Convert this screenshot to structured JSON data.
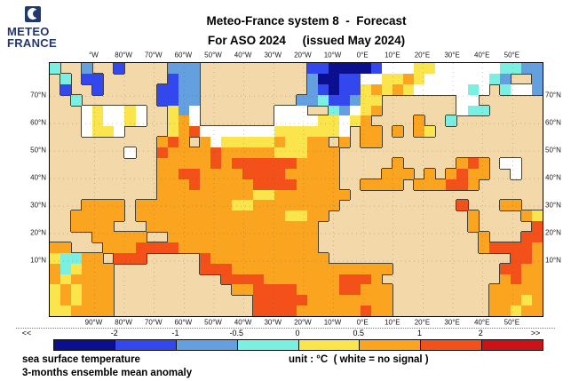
{
  "logo": {
    "line1": "METEO",
    "line2": "FRANCE",
    "navy": "#21386E"
  },
  "title": {
    "line1": "Meteo-France system 8  -  Forecast",
    "line2": "For ASO 2024     (issued May 2024)"
  },
  "map": {
    "top_axis": [
      "°W",
      "80°W",
      "70°W",
      "60°W",
      "50°W",
      "40°W",
      "30°W",
      "20°W",
      "10°W",
      "0°E",
      "10°E",
      "20°E",
      "30°E",
      "40°E",
      "50°E"
    ],
    "bottom_axis": [
      "90°W",
      "80°W",
      "70°W",
      "60°W",
      "50°W",
      "40°W",
      "30°W",
      "20°W",
      "10°W",
      "0°E",
      "10°E",
      "20°E",
      "30°E",
      "40°E",
      "50°E"
    ],
    "left_axis": [
      "70°N",
      "60°N",
      "50°N",
      "40°N",
      "30°N",
      "20°N",
      "10°N"
    ],
    "right_axis": [
      "70°N",
      "60°N",
      "50°N",
      "40°N",
      "30°N",
      "20°N",
      "10°N"
    ],
    "grid": {
      "cols": 46,
      "rows": 24,
      "palette": {
        "L": "#F3D9A9",
        "O": "#FBA41F",
        "Y": "#FBE54D",
        "W": "#FFFFFF",
        "C": "#79F0E2",
        "S": "#64A0DF",
        "B": "#3347EE",
        "N": "#0A0F8F",
        "R": "#F4501A",
        "E": "#CB1217"
      },
      "land_key": "L",
      "coast_color": "#45402e",
      "cells": [
        "CLLSLLBLLLLSSSLLLLLLLLLLBBNNNNBWWWYYWWWWWWCCSS",
        "LCLBBLLLLLLBSSLLLLLLLLLLSNNBBWWYYOYWWWWWWCSLLS",
        "LBLLBLLLLLBBSSLLLLLLLLLLSBNBBYOYOYWWWWWCWLCWWS",
        "LLCLLLLLLLBBSSLLLLLLLLLSSCBBSYYLLLLLLLWWLLLLLL",
        "LLLWYWWYWLLYSWLLLLLLLWWWLLCSWYOLLLLLLLWCCLLLLL",
        "LLLWYWWYWLLYOWLLLLLLLWWWWYYWYOLLLLOLLCLLLLLLLL",
        "LLLWYYWLLLLYORWWWWWWWYYYYYYWLOOLOLOYLLLLLLLLLL",
        "LLLLLLLLLLOROLOWYYYYYOYYOOLOLOOLLLLLLLLLLLLLLL",
        "LLLLLLLWLLROOOOROOOOOYYYOOOLLLLLLLLLLLLLLLLLLL",
        "LLLLLLLLLLOOOOORORRRRRROOOOLLLLLOLLLLLOROLWWLL",
        "LLLLLLLLLLOORROOOORRRROOOOOLLLLOOOLOLOROOLLWLL",
        "LLLLLLLLLLOOOROOOOORRRROOOOLLOOOOLOOORROLLLLLL",
        "LLLLLLLLLLOOOOOOOOOYYOOOOOOOLLLLLLLLLLLLLLLLLL",
        "LLLOOOOLOOOOOOOOOYYOOOOOOOOLLLLLLLLLLLRLLLOOLL",
        "LLOOOOOLOOOOOOOOOOOOOOYYOOLLLLLLLLLLLLLOLLLLOY",
        "LLOOOOLLLOOOOOOOOOOOOOOOOLLLLLLLLLLLLLLOLLLLLR",
        "LLLLOOOOOLLOOOOOOOOOOOOOOLLLLLLLLLLLLLLLOLLLRR",
        "OOLLLOOORRRROOOOOOOOOOOOOLLLLLLLLLLLLLLLORRRRO",
        "YCCOOLRRRLLLLLROOOOOOOOOOOLLLLLLLLLLLLLLLLLRRO",
        "OCYOOOLLLLLLLLRRROOOOOOOOOOOOOOOLLLLLLLLLLRROO",
        "OYOOOOLLLLLLLLLLRRRROOOOOOORRROLLLLLLLLLLLOROO",
        "YOYOOOLLLLLLLLLLLOORRRROOOORROOOLLLLLLLLLOOOOO",
        "YOYOOOLLLLLLLLLLLLLRRRRROOOOOOOOLLLLLLLLLOOOYO",
        "YYOOOOLLLLLLLLLLLLLRRRROOOOOOROOLLLLLLLLLOOYOO"
      ]
    }
  },
  "colorbar": {
    "left_arrow": "<<",
    "right_arrow": ">>",
    "tick_labels": [
      "-2",
      "-1",
      "-0.5",
      "0",
      "0.5",
      "1",
      "2"
    ],
    "colors": [
      "#0A0F8F",
      "#3347EE",
      "#64A0DF",
      "#79F0E2",
      "#FBE54D",
      "#FBA41F",
      "#F4501A",
      "#CB1217"
    ]
  },
  "captions": {
    "left_line1": "sea surface temperature",
    "left_line2": "3-months ensemble mean anomaly",
    "unit": "unit : °C  ( white = no signal )"
  }
}
